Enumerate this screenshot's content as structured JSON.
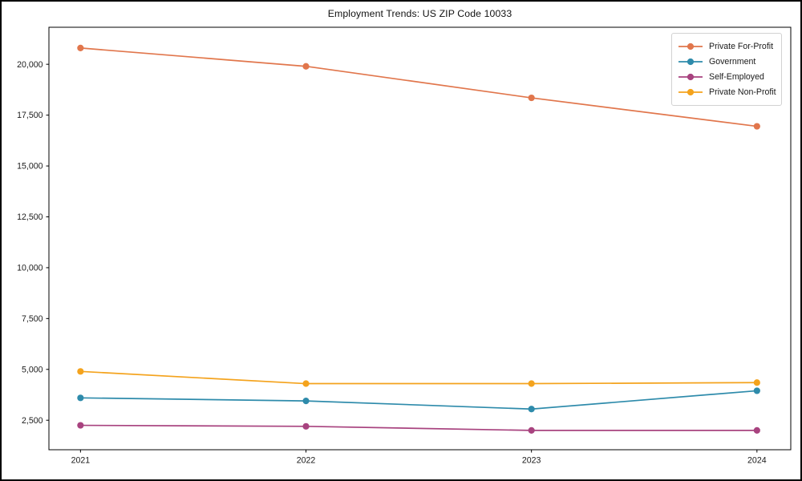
{
  "window": {
    "title": "Employment Trends: US ZIP Code 10033"
  },
  "chart_data": {
    "type": "line",
    "title": "Employment Trends: US ZIP Code 10033",
    "xlabel": "",
    "ylabel": "",
    "x": [
      2021,
      2022,
      2023,
      2024
    ],
    "x_tick_labels": [
      "2021",
      "2022",
      "2023",
      "2024"
    ],
    "y_ticks": [
      2500,
      5000,
      7500,
      10000,
      12500,
      15000,
      17500,
      20000
    ],
    "y_tick_labels": [
      "2,500",
      "5,000",
      "7,500",
      "10,000",
      "12,500",
      "15,000",
      "17,500",
      "20,000"
    ],
    "xlim": [
      2020.86,
      2024.15
    ],
    "ylim": [
      1050,
      21820
    ],
    "grid": false,
    "legend_position": "upper right",
    "series": [
      {
        "name": "Private For-Profit",
        "color": "#e1764c",
        "values": [
          20800,
          19900,
          18350,
          16950
        ]
      },
      {
        "name": "Government",
        "color": "#2e8bab",
        "values": [
          3600,
          3450,
          3050,
          3950
        ]
      },
      {
        "name": "Self-Employed",
        "color": "#a8437f",
        "values": [
          2250,
          2200,
          2000,
          2000
        ]
      },
      {
        "name": "Private Non-Profit",
        "color": "#f4a31d",
        "values": [
          4900,
          4300,
          4300,
          4350
        ]
      }
    ],
    "colors": {
      "axis": "#000000",
      "text": "#1a1a1a",
      "legend_border": "#d2d2d2",
      "background": "#ffffff"
    }
  }
}
